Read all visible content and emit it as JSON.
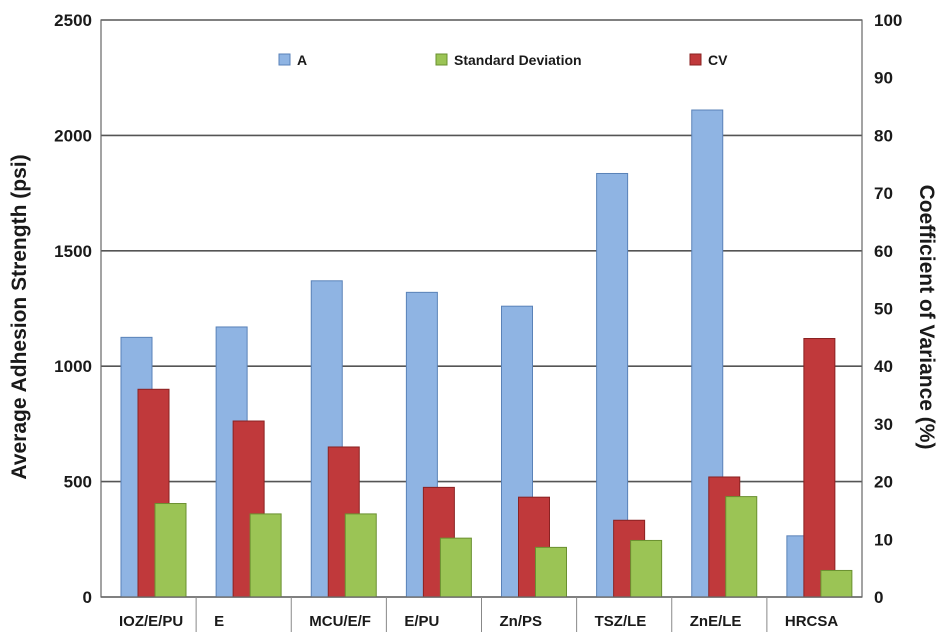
{
  "chart_data": {
    "type": "bar",
    "categories": [
      "IOZ/E/PU",
      "E",
      "MCU/E/F",
      "E/PU",
      "Zn/PS",
      "TSZ/LE",
      "ZnE/LE",
      "HRCSA"
    ],
    "series": [
      {
        "name": "A",
        "axis": "left",
        "color": "#8fb4e3",
        "edge": "#5a82b8",
        "values": [
          1125,
          1170,
          1370,
          1320,
          1260,
          1835,
          2110,
          265
        ]
      },
      {
        "name": "CV",
        "axis": "right",
        "color": "#c0393b",
        "edge": "#8a2222",
        "values": [
          36,
          30.5,
          26,
          19,
          17.3,
          13.3,
          20.8,
          44.8
        ]
      },
      {
        "name": "Standard Deviation",
        "axis": "left",
        "color": "#9bc455",
        "edge": "#6a9030",
        "values": [
          405,
          360,
          360,
          255,
          215,
          245,
          435,
          115
        ]
      }
    ],
    "legend_order": [
      "A",
      "Standard Deviation",
      "CV"
    ],
    "ylabel": "Average Adhesion Strength (psi)",
    "y2label": "Coefficient of Variance (%)",
    "xlabel": "",
    "title": "",
    "ylim": [
      0,
      2500
    ],
    "y2lim": [
      0,
      100
    ],
    "yticks": [
      "0",
      "500",
      "1000",
      "1500",
      "2000",
      "2500"
    ],
    "y2ticks": [
      "0",
      "10",
      "20",
      "30",
      "40",
      "50",
      "60",
      "70",
      "80",
      "90",
      "100"
    ],
    "grid": true,
    "legend_position": "top"
  }
}
